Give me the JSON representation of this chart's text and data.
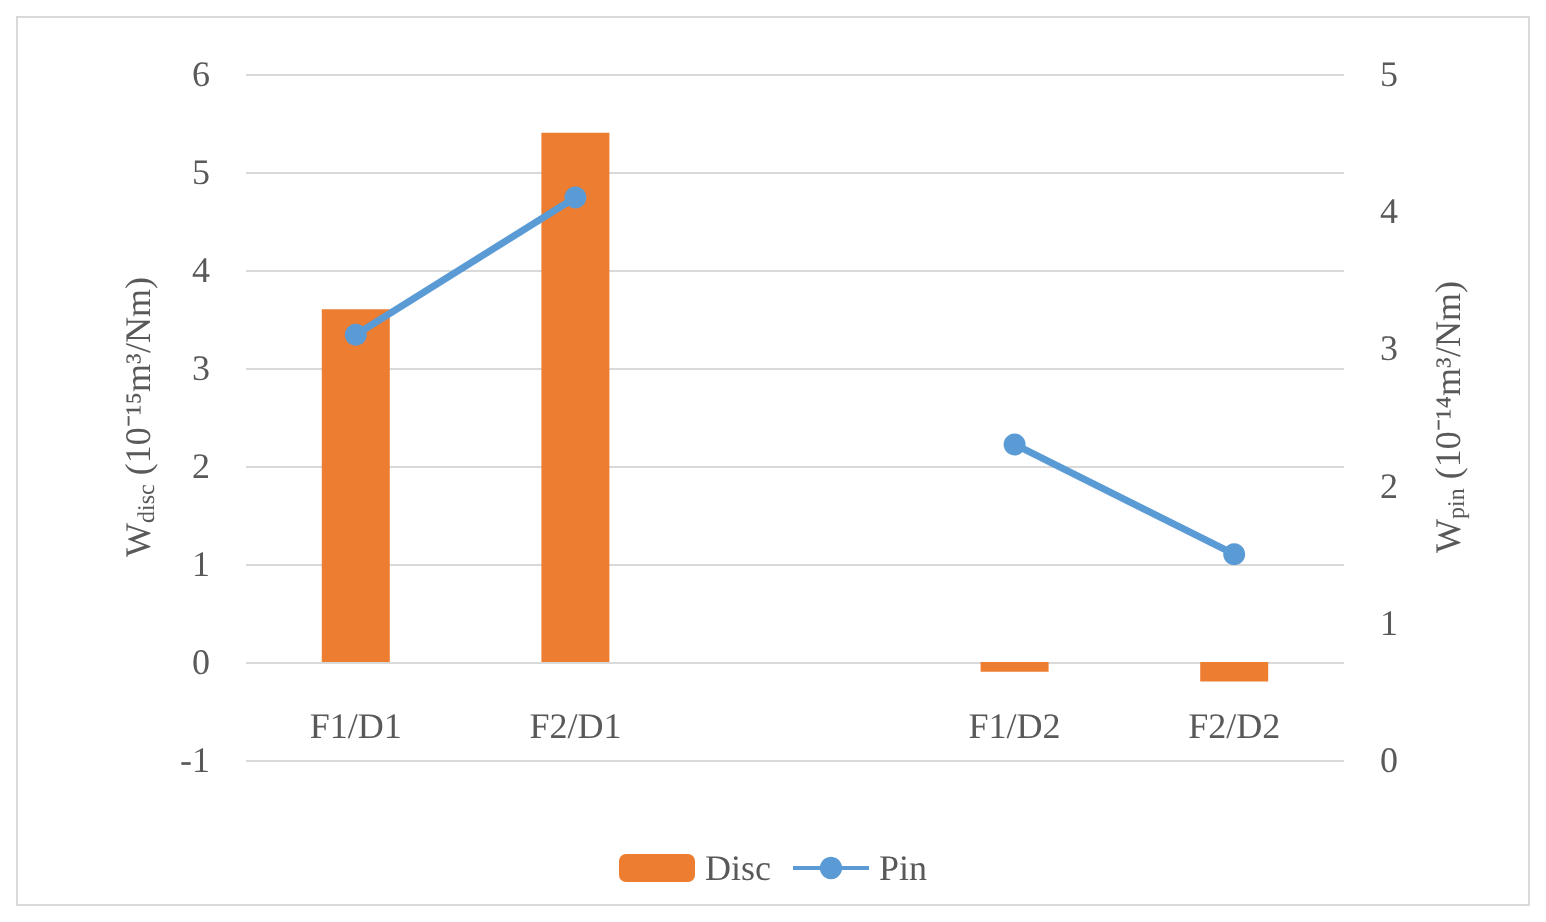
{
  "chart_data": {
    "type": "bar",
    "ylabel": "W$_{disc}$ (10⁻¹⁵m³/Nm)",
    "y2label": "W$_{pin}$ (10⁻¹⁴m³/Nm)",
    "categories": [
      "F1/D1",
      "F2/D1",
      null,
      "F1/D2",
      "F2/D2"
    ],
    "series": [
      {
        "name": "Disc",
        "color": "#ed7d31",
        "values": [
          3.6,
          5.4,
          null,
          -0.1,
          -0.2
        ]
      },
      {
        "name": "Pin",
        "type": "line",
        "axis": "y2",
        "color": "#5b9bd5",
        "values": [
          3.1,
          4.1,
          null,
          2.3,
          1.5
        ],
        "marker": "circle"
      }
    ],
    "ylim": [
      -1,
      6
    ],
    "yticks": [
      -1,
      0,
      1,
      2,
      3,
      4,
      5,
      6
    ],
    "y2lim": [
      0,
      5
    ],
    "y2ticks": [
      0,
      1,
      2,
      3,
      4,
      5
    ],
    "grid": "y",
    "legend": "bottom"
  }
}
